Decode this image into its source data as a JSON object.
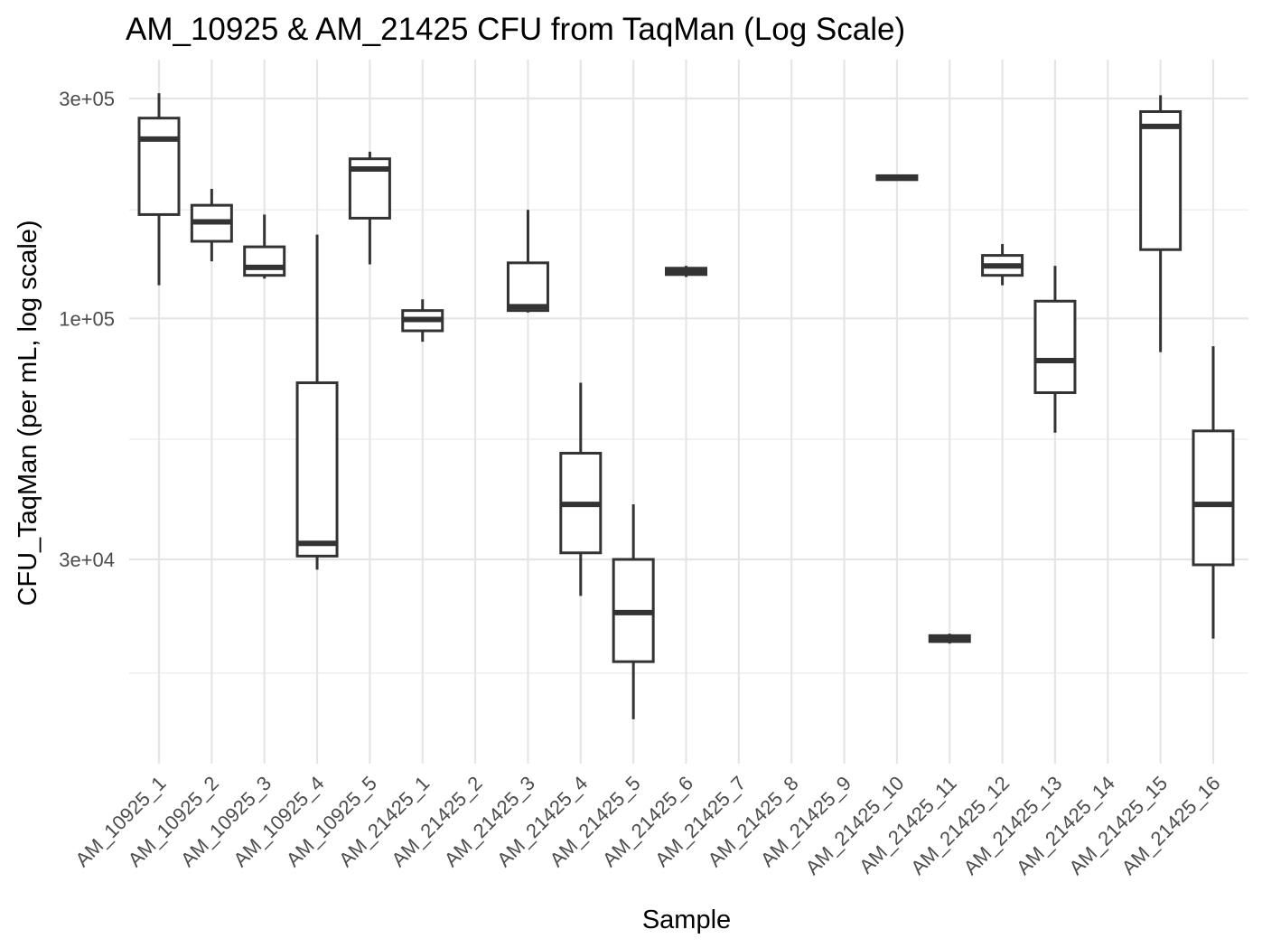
{
  "chart_data": {
    "type": "boxplot",
    "title": "AM_10925 & AM_21425 CFU from TaqMan (Log Scale)",
    "xlabel": "Sample",
    "ylabel": "CFU_TaqMan (per mL, log scale)",
    "y_scale": "log10",
    "ylim": [
      11000,
      420000
    ],
    "y_major_ticks": [
      {
        "value": 30000,
        "label": "3e+04"
      },
      {
        "value": 100000,
        "label": "1e+05"
      },
      {
        "value": 300000,
        "label": "3e+05"
      }
    ],
    "y_minor_gridlines": [
      17000,
      54700,
      172000
    ],
    "grid": true,
    "legend": "none",
    "categories": [
      "AM_10925_1",
      "AM_10925_2",
      "AM_10925_3",
      "AM_10925_4",
      "AM_10925_5",
      "AM_21425_1",
      "AM_21425_2",
      "AM_21425_3",
      "AM_21425_4",
      "AM_21425_5",
      "AM_21425_6",
      "AM_21425_7",
      "AM_21425_8",
      "AM_21425_9",
      "AM_21425_10",
      "AM_21425_11",
      "AM_21425_12",
      "AM_21425_13",
      "AM_21425_14",
      "AM_21425_15",
      "AM_21425_16"
    ],
    "boxes": [
      {
        "sample": "AM_10925_1",
        "min": 118000,
        "q1": 168000,
        "median": 245000,
        "q3": 272000,
        "max": 308000
      },
      {
        "sample": "AM_10925_2",
        "min": 133000,
        "q1": 147000,
        "median": 162000,
        "q3": 176000,
        "max": 191000
      },
      {
        "sample": "AM_10925_3",
        "min": 122000,
        "q1": 124000,
        "median": 129000,
        "q3": 143000,
        "max": 168000
      },
      {
        "sample": "AM_10925_4",
        "min": 28500,
        "q1": 30500,
        "median": 32500,
        "q3": 72500,
        "max": 152000
      },
      {
        "sample": "AM_10925_5",
        "min": 131000,
        "q1": 165000,
        "median": 211000,
        "q3": 222000,
        "max": 230000
      },
      {
        "sample": "AM_21425_1",
        "min": 89000,
        "q1": 94000,
        "median": 99500,
        "q3": 104000,
        "max": 110000
      },
      {
        "sample": "AM_21425_2",
        "min": null,
        "q1": null,
        "median": null,
        "q3": null,
        "max": null
      },
      {
        "sample": "AM_21425_3",
        "min": 103000,
        "q1": 104000,
        "median": 106000,
        "q3": 132000,
        "max": 172000
      },
      {
        "sample": "AM_21425_4",
        "min": 25000,
        "q1": 31000,
        "median": 39500,
        "q3": 51000,
        "max": 72500
      },
      {
        "sample": "AM_21425_5",
        "min": 13500,
        "q1": 18000,
        "median": 23000,
        "q3": 30000,
        "max": 39500
      },
      {
        "sample": "AM_21425_6",
        "min": 123000,
        "q1": 124500,
        "median": 126500,
        "q3": 128500,
        "max": 130000
      },
      {
        "sample": "AM_21425_7",
        "min": null,
        "q1": null,
        "median": null,
        "q3": null,
        "max": null
      },
      {
        "sample": "AM_21425_8",
        "min": null,
        "q1": null,
        "median": null,
        "q3": null,
        "max": null
      },
      {
        "sample": "AM_21425_9",
        "min": null,
        "q1": null,
        "median": null,
        "q3": null,
        "max": null
      },
      {
        "sample": "AM_21425_10",
        "min": 200000,
        "q1": 200000,
        "median": 202000,
        "q3": 204000,
        "max": 205000
      },
      {
        "sample": "AM_21425_11",
        "min": 19700,
        "q1": 19900,
        "median": 20200,
        "q3": 20500,
        "max": 20700
      },
      {
        "sample": "AM_21425_12",
        "min": 118000,
        "q1": 124000,
        "median": 130000,
        "q3": 137000,
        "max": 145000
      },
      {
        "sample": "AM_21425_13",
        "min": 56500,
        "q1": 69000,
        "median": 81000,
        "q3": 109000,
        "max": 130000
      },
      {
        "sample": "AM_21425_14",
        "min": null,
        "q1": null,
        "median": null,
        "q3": null,
        "max": null
      },
      {
        "sample": "AM_21425_15",
        "min": 84500,
        "q1": 141000,
        "median": 261000,
        "q3": 281000,
        "max": 305000
      },
      {
        "sample": "AM_21425_16",
        "min": 20200,
        "q1": 29200,
        "median": 39500,
        "q3": 57000,
        "max": 87000
      }
    ]
  },
  "style": {
    "box_stroke": "#333333",
    "box_fill": "#ffffff",
    "gridline_color": "#e5e5e5",
    "tick_label_color": "#4d4d4d",
    "text_color": "#000000",
    "background": "#ffffff"
  }
}
